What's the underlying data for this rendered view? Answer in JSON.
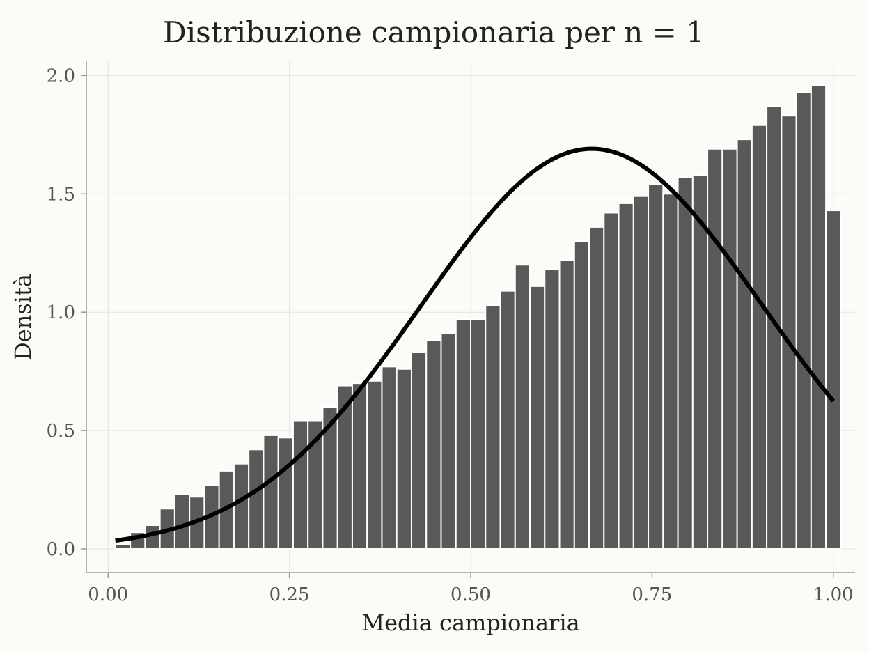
{
  "chart_data": {
    "type": "bar",
    "title": "Distribuzione campionaria per n = 1",
    "xlabel": "Media campionaria",
    "ylabel": "Densità",
    "xlim": [
      -0.03,
      1.03
    ],
    "ylim": [
      -0.1,
      2.06
    ],
    "xticks": [
      0,
      0.25,
      0.5,
      0.75,
      1
    ],
    "xtick_labels": [
      "0.00",
      "0.25",
      "0.50",
      "0.75",
      "1.00"
    ],
    "yticks": [
      0,
      0.5,
      1,
      1.5,
      2
    ],
    "ytick_labels": [
      "0.0",
      "0.5",
      "1.0",
      "1.5",
      "2.0"
    ],
    "grid": true,
    "histogram": {
      "bin_width": 0.02040816,
      "bin_start": -0.01020408,
      "values": [
        0.0,
        0.02,
        0.07,
        0.1,
        0.17,
        0.23,
        0.22,
        0.27,
        0.33,
        0.36,
        0.42,
        0.48,
        0.47,
        0.54,
        0.54,
        0.6,
        0.69,
        0.7,
        0.71,
        0.77,
        0.76,
        0.83,
        0.88,
        0.91,
        0.97,
        0.97,
        1.03,
        1.09,
        1.2,
        1.11,
        1.18,
        1.22,
        1.3,
        1.36,
        1.42,
        1.46,
        1.49,
        1.54,
        1.5,
        1.57,
        1.58,
        1.69,
        1.69,
        1.73,
        1.79,
        1.87,
        1.83,
        1.93,
        1.96,
        1.43
      ],
      "color": "#595959"
    },
    "curve": {
      "type": "normal-density",
      "mean": 0.667,
      "sd": 0.236,
      "x_range": [
        0.01,
        1.0
      ],
      "color": "#000000"
    }
  }
}
